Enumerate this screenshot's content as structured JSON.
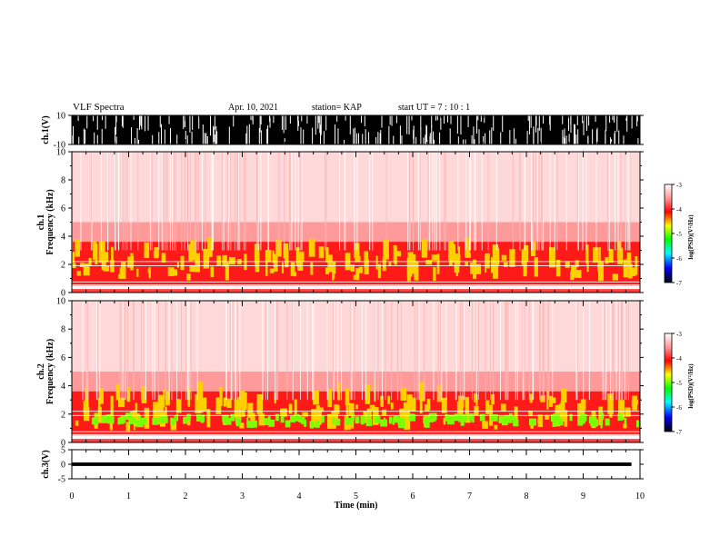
{
  "header": {
    "title": "VLF Spectra",
    "date": "Apr. 10, 2021",
    "station": "station= KAP",
    "start": "start  UT  =   7 : 10 : 1"
  },
  "colors": {
    "background": "#ffffff",
    "axis": "#000000",
    "spectrogram_low": "#ffffff",
    "spectrogram_mid": "#ff0000",
    "spectrogram_high": "#ffff00",
    "spectrogram_peak": "#00ff00"
  },
  "chart_data": [
    {
      "type": "line",
      "name": "ch1-waveform",
      "ylabel": "ch.1(V)",
      "ylim": [
        -10,
        10
      ],
      "ytick_labels": [
        "10",
        "-10"
      ],
      "xlim": [
        0,
        10
      ],
      "description_values": {
        "saturated_min": -10,
        "saturated_max": 10
      }
    },
    {
      "type": "heatmap",
      "name": "ch1-spectrogram",
      "ylabel": "ch.1\nFrequency (kHz)",
      "ylim": [
        0,
        10
      ],
      "ytick_labels": [
        "0",
        "2",
        "4",
        "6",
        "8",
        "10"
      ],
      "xlim": [
        0,
        10
      ],
      "colorbar": {
        "label": "log(PSD)(V²/Hz)",
        "range": [
          -7,
          -3
        ],
        "tick_labels": [
          "-3",
          "-4",
          "-5",
          "-6",
          "-7"
        ]
      }
    },
    {
      "type": "heatmap",
      "name": "ch2-spectrogram",
      "ylabel": "ch.2\nFrequency (kHz)",
      "ylim": [
        0,
        10
      ],
      "ytick_labels": [
        "0",
        "2",
        "4",
        "6",
        "8",
        "10"
      ],
      "xlim": [
        0,
        10
      ],
      "colorbar": {
        "label": "log(PSD)(V²/Hz)",
        "range": [
          -7,
          -3
        ],
        "tick_labels": [
          "-3",
          "-4",
          "-5",
          "-6",
          "-7"
        ]
      }
    },
    {
      "type": "line",
      "name": "ch3-waveform",
      "ylabel": "ch.3(V)",
      "ylim": [
        -5,
        5
      ],
      "ytick_labels": [
        "5",
        "0",
        "-5"
      ],
      "xlim": [
        0,
        10
      ],
      "xlabel": "Time  (min)",
      "xtick_labels": [
        "0",
        "1",
        "2",
        "3",
        "4",
        "5",
        "6",
        "7",
        "8",
        "9",
        "10"
      ],
      "data_end_x": 9.85
    }
  ]
}
